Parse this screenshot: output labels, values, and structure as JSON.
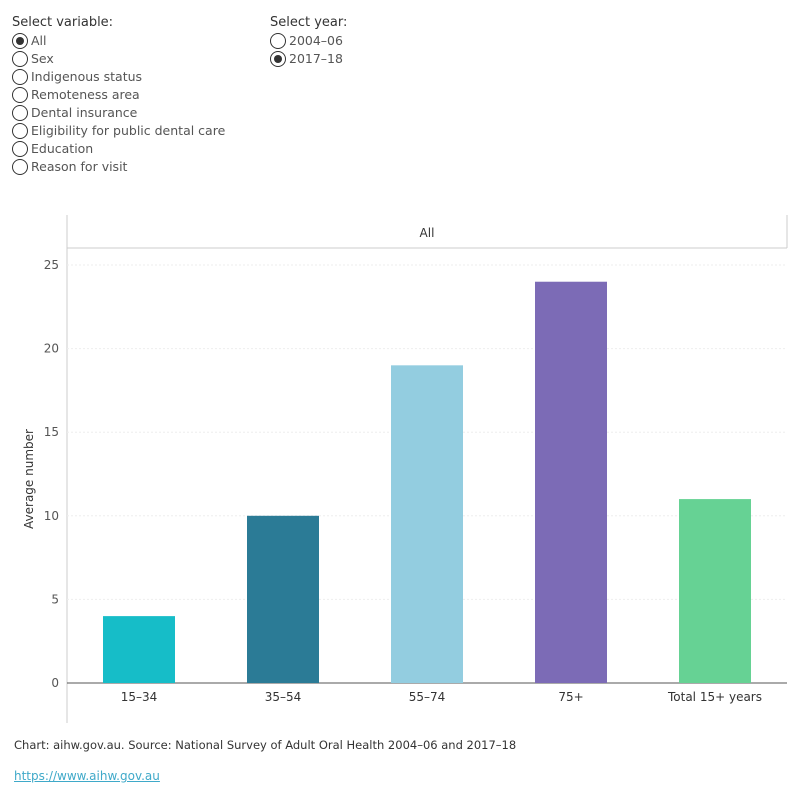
{
  "filters": {
    "variable": {
      "title": "Select variable:",
      "options": [
        "All",
        "Sex",
        "Indigenous status",
        "Remoteness area",
        "Dental insurance",
        "Eligibility for public dental care",
        "Education",
        "Reason for visit"
      ],
      "selected": "All"
    },
    "year": {
      "title": "Select year:",
      "options": [
        "2004–06",
        "2017–18"
      ],
      "selected": "2017–18"
    }
  },
  "chart_data": {
    "type": "bar",
    "panel_title": "All",
    "ylabel": "Average number",
    "xlabel": "",
    "ylim": [
      0,
      25
    ],
    "yticks": [
      0,
      5,
      10,
      15,
      20,
      25
    ],
    "grid": true,
    "categories": [
      "15–34",
      "35–54",
      "55–74",
      "75+",
      "Total 15+ years"
    ],
    "values": [
      4,
      10,
      19,
      24,
      11
    ],
    "colors": [
      "#16bdc8",
      "#2b7b96",
      "#93cde0",
      "#7c6bb6",
      "#66d294"
    ]
  },
  "footer": {
    "source": "Chart: aihw.gov.au. Source: National Survey of Adult Oral Health 2004–06 and 2017–18",
    "link": "https://www.aihw.gov.au"
  }
}
